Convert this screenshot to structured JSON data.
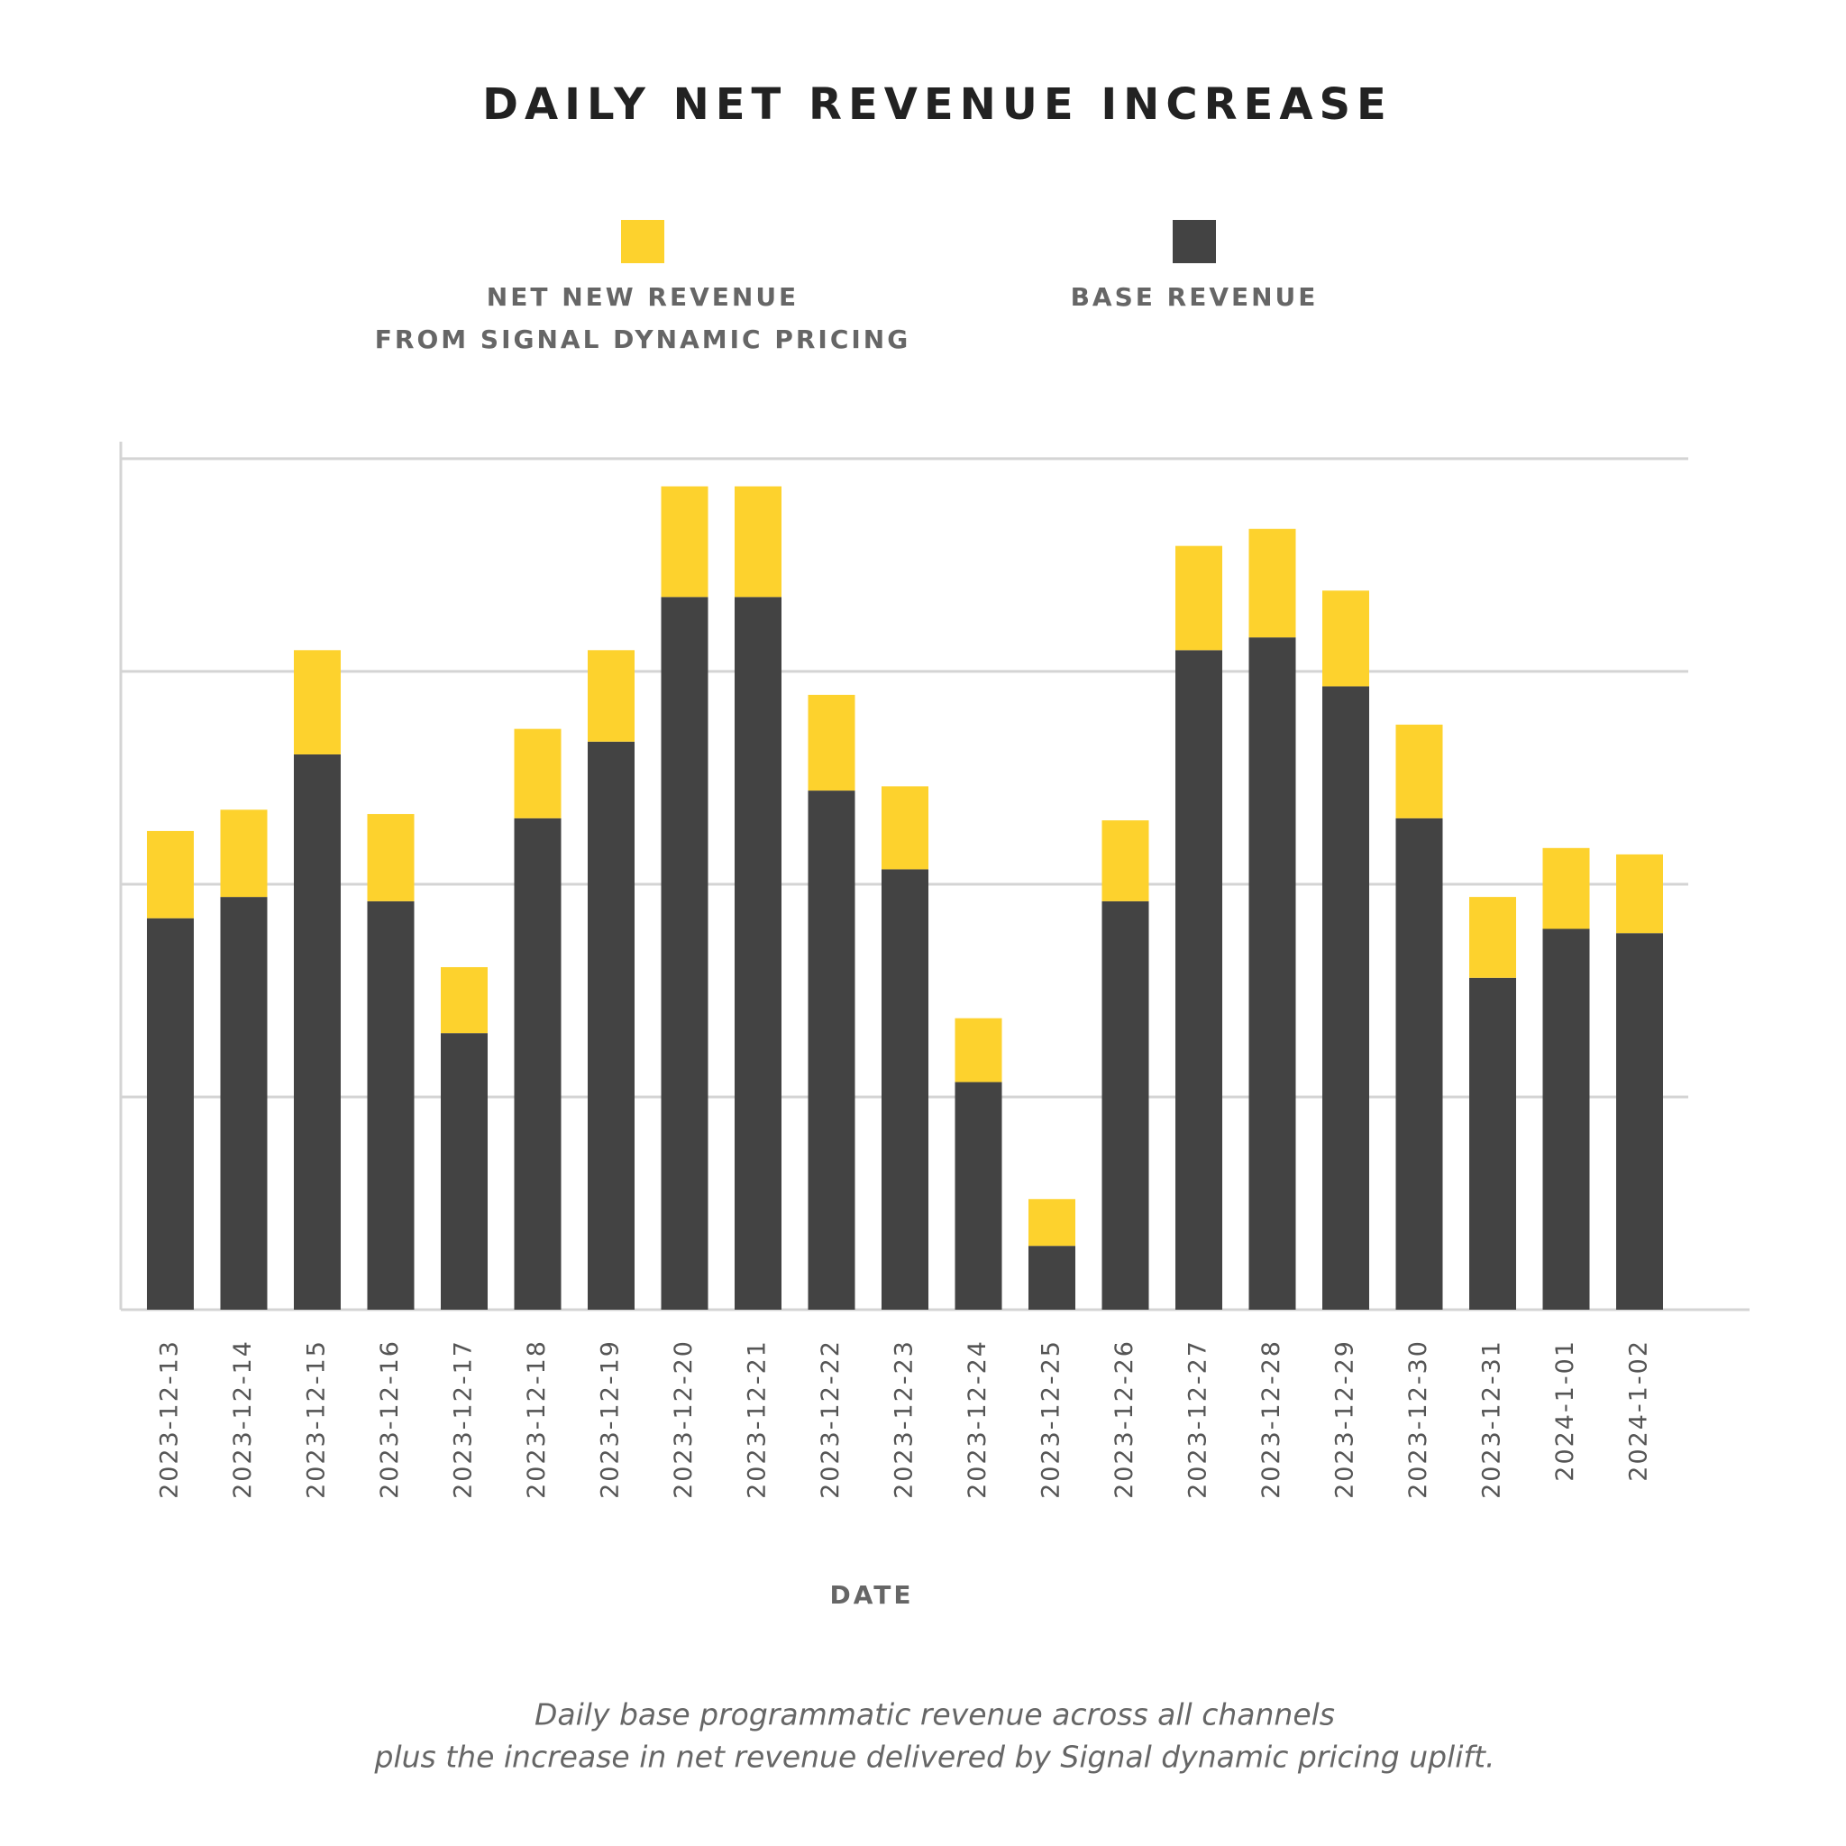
{
  "chart_data": {
    "type": "stacked_bar",
    "title": "DAILY NET REVENUE INCREASE",
    "x_label": "DATE",
    "caption": [
      "Daily base programmatic revenue across all channels",
      "plus the increase in net revenue delivered by Signal dynamic pricing uplift."
    ],
    "categories": [
      "2023-12-13",
      "2023-12-14",
      "2023-12-15",
      "2023-12-16",
      "2023-12-17",
      "2023-12-18",
      "2023-12-19",
      "2023-12-20",
      "2023-12-21",
      "2023-12-22",
      "2023-12-23",
      "2023-12-24",
      "2023-12-25",
      "2023-12-26",
      "2023-12-27",
      "2023-12-28",
      "2023-12-29",
      "2023-12-30",
      "2023-12-31",
      "2024-1-01",
      "2024-1-02"
    ],
    "series": [
      {
        "name": "NET NEW REVENUE\nFROM SIGNAL DYNAMIC PRICING",
        "color": "#fdd22d",
        "values": [
          0.41,
          0.41,
          0.49,
          0.41,
          0.31,
          0.42,
          0.43,
          0.52,
          0.52,
          0.45,
          0.39,
          0.3,
          0.22,
          0.38,
          0.49,
          0.51,
          0.45,
          0.44,
          0.38,
          0.38,
          0.37
        ]
      },
      {
        "name": "BASE REVENUE",
        "color": "#434343",
        "values": [
          1.84,
          1.94,
          2.61,
          1.92,
          1.3,
          2.31,
          2.67,
          3.35,
          3.35,
          2.44,
          2.07,
          1.07,
          0.3,
          1.92,
          3.1,
          3.16,
          2.93,
          2.31,
          1.56,
          1.79,
          1.77
        ]
      }
    ],
    "ylim": [
      0,
      4.08
    ],
    "grid_lines": [
      1,
      2,
      3,
      4
    ],
    "grid": true
  }
}
